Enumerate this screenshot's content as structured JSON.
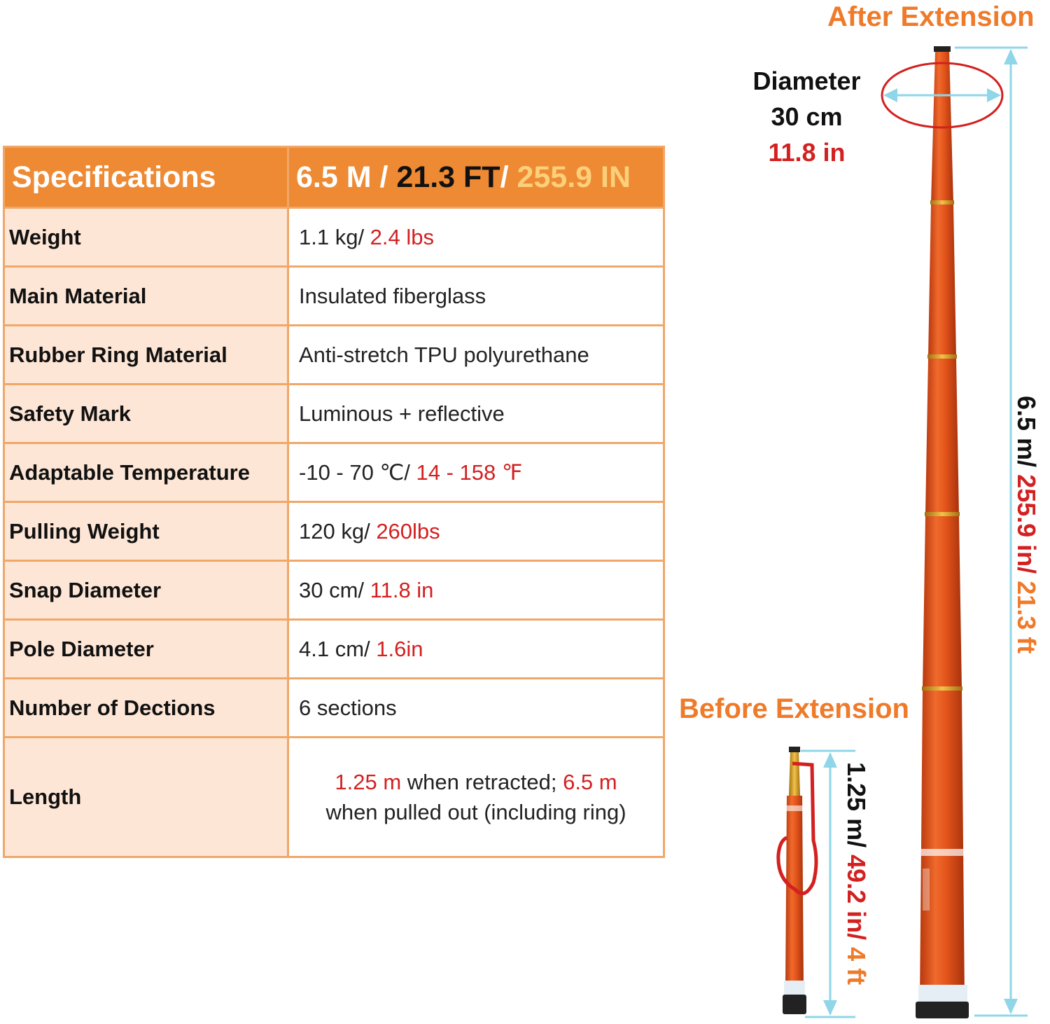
{
  "header": {
    "label": "Specifications",
    "value_part1": "6.5 M /",
    "value_part2": " 21.3 FT",
    "value_part3": "/",
    "value_part4": " 255.9 IN"
  },
  "rows": [
    {
      "label": "Weight",
      "value": "1.1 kg/",
      "value_red": " 2.4 lbs"
    },
    {
      "label": "Main Material",
      "value": "Insulated fiberglass"
    },
    {
      "label": "Rubber Ring Material",
      "value": "Anti-stretch TPU polyurethane"
    },
    {
      "label": "Safety Mark",
      "value": "Luminous + reflective"
    },
    {
      "label": "Adaptable Temperature",
      "value": "-10 - 70 ℃/",
      "value_red": " 14 - 158 ℉"
    },
    {
      "label": "Pulling Weight",
      "value": "120 kg/",
      "value_red": " 260lbs"
    },
    {
      "label": "Snap Diameter",
      "value": "30 cm/",
      "value_red": " 11.8 in"
    },
    {
      "label": "Pole Diameter",
      "value": "4.1 cm/",
      "value_red": " 1.6in"
    },
    {
      "label": "Number of Dections",
      "value": "6 sections"
    },
    {
      "label": "Length",
      "value_red_a": "1.25 m",
      "value_b": " when retracted; ",
      "value_red_c": "6.5 m",
      "value_d": "when pulled out (including ring)"
    }
  ],
  "illustration": {
    "after_title": "After Extension",
    "before_title": "Before Extension",
    "diameter_label": "Diameter",
    "diameter_cm": "30 cm",
    "diameter_in": "11.8 in",
    "after_len_m": "6.5 m/",
    "after_len_in": " 255.9 in/",
    "after_len_ft": " 21.3 ft",
    "before_len_m": "1.25 m/",
    "before_len_in": " 49.2 in/",
    "before_len_ft": " 4 ft",
    "colors": {
      "orange": "#ee8a33",
      "pole": "#e0521a",
      "arrow": "#8fd6e8",
      "red": "#d32020"
    }
  }
}
